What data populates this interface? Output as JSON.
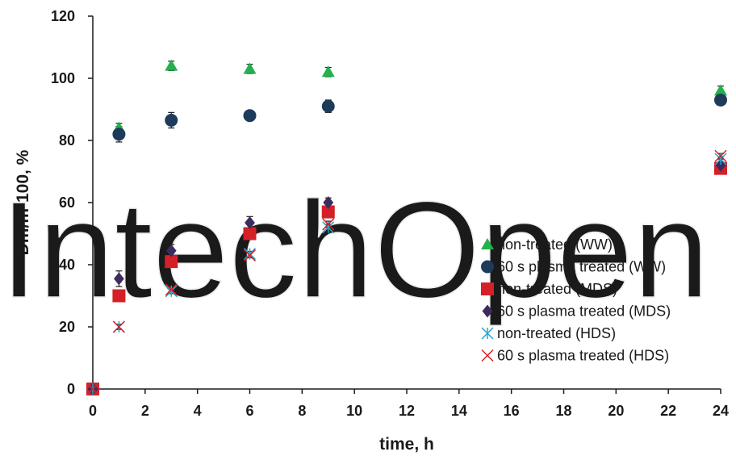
{
  "chart_data": {
    "type": "scatter",
    "xlabel": "time, h",
    "ylabel": "Dm/m·100, %",
    "xlim": [
      0,
      24
    ],
    "ylim": [
      0,
      120
    ],
    "xticks": [
      "0",
      "2",
      "4",
      "6",
      "8",
      "10",
      "12",
      "14",
      "16",
      "18",
      "20",
      "22",
      "24"
    ],
    "yticks": [
      "0",
      "20",
      "40",
      "60",
      "80",
      "100",
      "120"
    ],
    "grid": false,
    "legend_position": "right",
    "watermark": "IntechOpen",
    "series": [
      {
        "name": "non-treated (WW)",
        "marker": "triangle",
        "color": "#22b14c",
        "x": [
          0,
          1,
          3,
          6,
          9,
          24
        ],
        "y": [
          0,
          84,
          104,
          103,
          102,
          96
        ],
        "err": [
          0,
          1.5,
          1.5,
          1.5,
          1.5,
          1.5
        ]
      },
      {
        "name": "60 s plasma treated (WW)",
        "marker": "circle",
        "color": "#1f3b5c",
        "x": [
          0,
          1,
          3,
          6,
          9,
          24
        ],
        "y": [
          0,
          82,
          86.5,
          88,
          91,
          93
        ],
        "err": [
          0,
          2.5,
          2.5,
          1.5,
          2,
          1.5
        ]
      },
      {
        "name": "non-treated (MDS)",
        "marker": "square",
        "color": "#d42027",
        "x": [
          0,
          1,
          3,
          6,
          9,
          24
        ],
        "y": [
          0,
          30,
          41,
          50,
          57,
          71
        ],
        "err": [
          0,
          1,
          1,
          1.5,
          1.5,
          1
        ]
      },
      {
        "name": "60 s plasma treated (MDS)",
        "marker": "diamond",
        "color": "#3d2a5e",
        "x": [
          0,
          1,
          3,
          6,
          9,
          24
        ],
        "y": [
          0,
          35.5,
          44.5,
          53.5,
          60,
          72
        ],
        "err": [
          0,
          2.5,
          2,
          2,
          1.5,
          2
        ]
      },
      {
        "name": "non-treated (HDS)",
        "marker": "asterisk",
        "color": "#2aa5c8",
        "x": [
          0,
          1,
          3,
          6,
          9,
          24
        ],
        "y": [
          0,
          20,
          31.5,
          43.5,
          52,
          74
        ],
        "err": [
          0,
          0.8,
          0.8,
          0.8,
          1,
          0.8
        ]
      },
      {
        "name": "60 s plasma treated (HDS)",
        "marker": "x",
        "color": "#d42027",
        "x": [
          0,
          1,
          3,
          6,
          9,
          24
        ],
        "y": [
          0,
          20,
          32,
          43,
          53,
          75
        ],
        "err": [
          0,
          0.8,
          0.8,
          0.8,
          1,
          0.8
        ]
      }
    ]
  }
}
